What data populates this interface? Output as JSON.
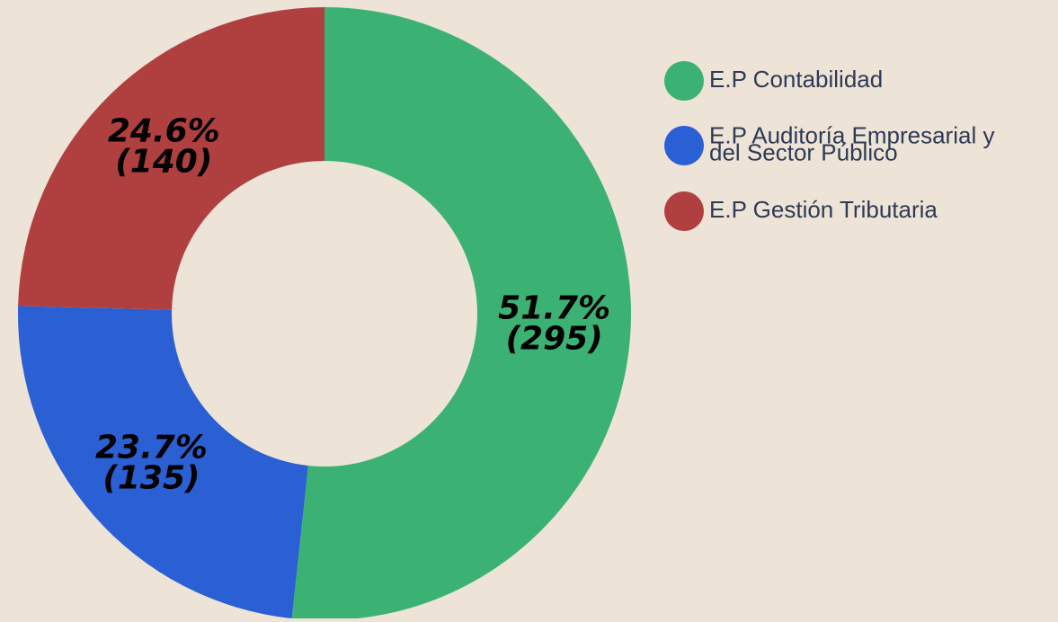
{
  "chart_data": {
    "type": "donut",
    "categories": [
      "E.P Contabilidad",
      "E.P Auditoría Empresarial y\ndel Sector Público",
      "E.P Gestión Tributaria"
    ],
    "values": [
      51.7,
      23.7,
      24.6
    ],
    "value_labels": [
      "51.7%",
      "23.7%",
      "24.6%"
    ],
    "counts": [
      295,
      135,
      140
    ],
    "count_labels": [
      "(295)",
      "(135)",
      "(140)"
    ],
    "colors": [
      "#3bb273",
      "#2b5fd4",
      "#b0403f"
    ],
    "legend": "right"
  }
}
